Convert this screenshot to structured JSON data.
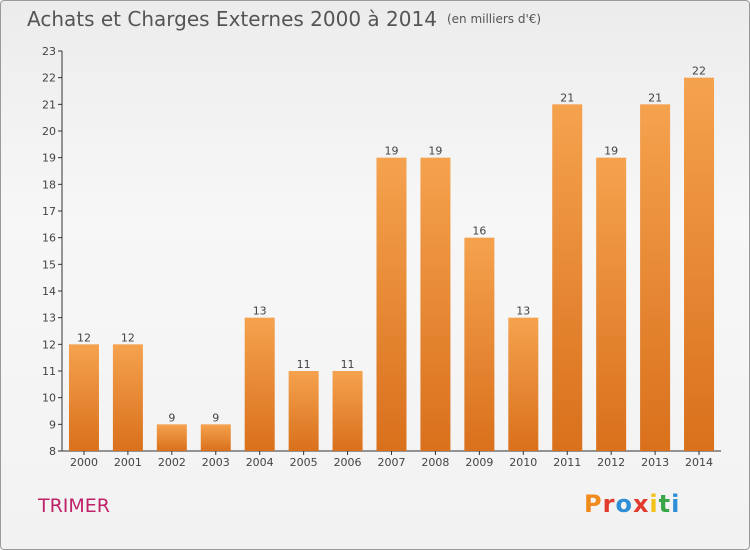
{
  "header": {
    "title": "Achats et Charges Externes 2000 à 2014",
    "subtitle": "(en milliers d'€)"
  },
  "footer": {
    "commune": "TRIMER",
    "logo": "Proxiti",
    "logo_colors": [
      "#f08a1c",
      "#e23b2e",
      "#2e8fd6",
      "#e23b2e",
      "#f2c21a",
      "#3aa648",
      "#2e8fd6"
    ]
  },
  "chart_data": {
    "type": "bar",
    "title": "Achats et Charges Externes 2000 à 2014",
    "subtitle": "(en milliers d'€)",
    "categories": [
      "2000",
      "2001",
      "2002",
      "2003",
      "2004",
      "2005",
      "2006",
      "2007",
      "2008",
      "2009",
      "2010",
      "2011",
      "2012",
      "2013",
      "2014"
    ],
    "values": [
      12,
      12,
      9,
      9,
      13,
      11,
      11,
      19,
      19,
      16,
      13,
      21,
      19,
      21,
      22
    ],
    "ylim": [
      8,
      23
    ],
    "yticks": [
      8,
      9,
      10,
      11,
      12,
      13,
      14,
      15,
      16,
      17,
      18,
      19,
      20,
      21,
      22,
      23
    ],
    "grid": false,
    "bar_color_top": "#f5a24e",
    "bar_color_bottom": "#d9701c"
  }
}
